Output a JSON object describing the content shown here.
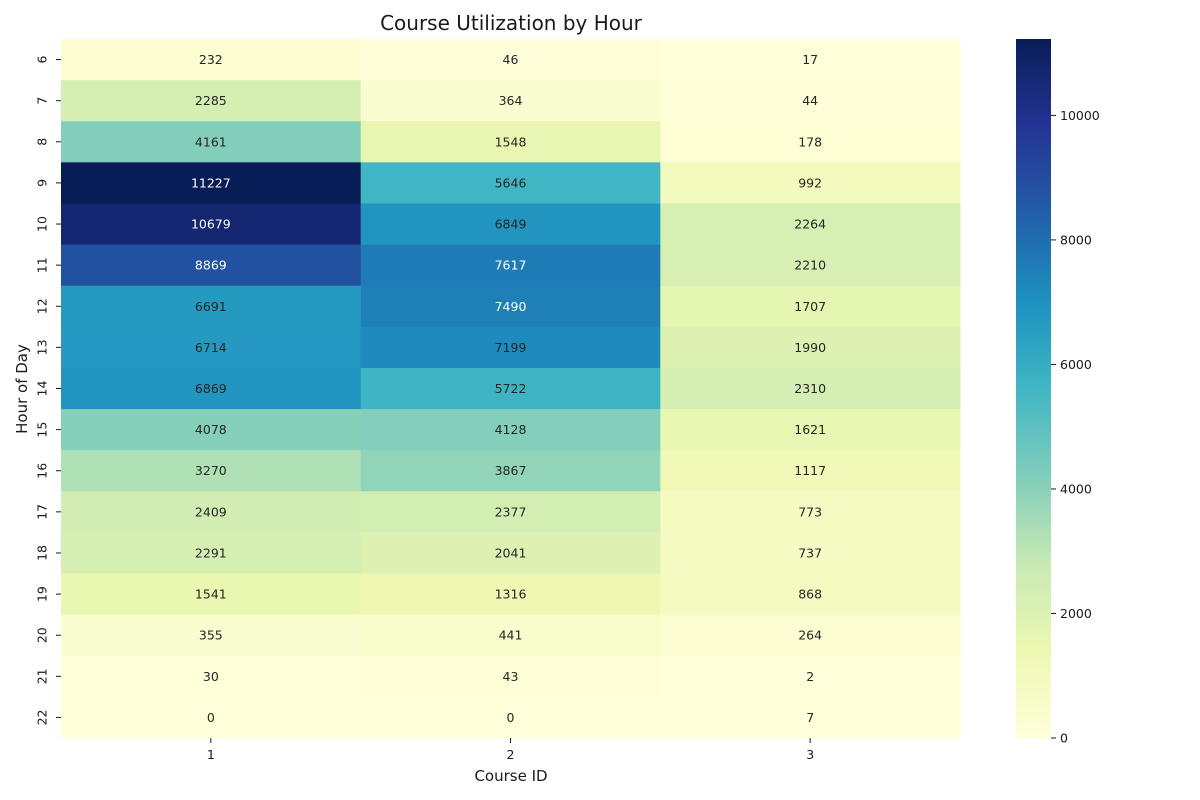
{
  "chart_data": {
    "type": "heatmap",
    "title": "Course Utilization by Hour",
    "xlabel": "Course ID",
    "ylabel": "Hour of Day",
    "x_categories": [
      "1",
      "2",
      "3"
    ],
    "y_categories": [
      "6",
      "7",
      "8",
      "9",
      "10",
      "11",
      "12",
      "13",
      "14",
      "15",
      "16",
      "17",
      "18",
      "19",
      "20",
      "21",
      "22"
    ],
    "values": [
      [
        232,
        46,
        17
      ],
      [
        2285,
        364,
        44
      ],
      [
        4161,
        1548,
        178
      ],
      [
        11227,
        5646,
        992
      ],
      [
        10679,
        6849,
        2264
      ],
      [
        8869,
        7617,
        2210
      ],
      [
        6691,
        7490,
        1707
      ],
      [
        6714,
        7199,
        1990
      ],
      [
        6869,
        5722,
        2310
      ],
      [
        4078,
        4128,
        1621
      ],
      [
        3270,
        3867,
        1117
      ],
      [
        2409,
        2377,
        773
      ],
      [
        2291,
        2041,
        737
      ],
      [
        1541,
        1316,
        868
      ],
      [
        355,
        441,
        264
      ],
      [
        30,
        43,
        2
      ],
      [
        0,
        0,
        7
      ]
    ],
    "colormap": "YlGnBu",
    "vmin": 0,
    "vmax": 11227,
    "colorbar_ticks": [
      0,
      2000,
      4000,
      6000,
      8000,
      10000
    ],
    "annotations": true
  }
}
